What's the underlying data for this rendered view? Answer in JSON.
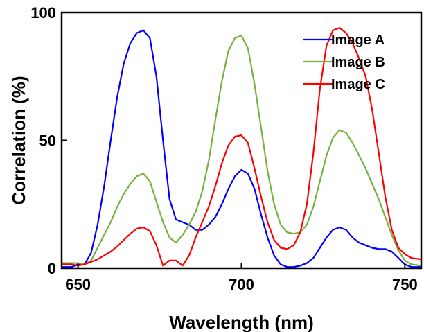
{
  "chart_data": {
    "type": "line",
    "xlabel": "Wavelength (nm)",
    "ylabel": "Correlation (%)",
    "xlim": [
      645,
      755
    ],
    "ylim": [
      0,
      100
    ],
    "xticks": [
      650,
      700,
      750
    ],
    "yticks": [
      0,
      50,
      100
    ],
    "grid": false,
    "legend_position": "top-right",
    "series": [
      {
        "name": "Image A",
        "color": "#0000ff",
        "x": [
          645,
          648,
          650,
          652,
          654,
          656,
          658,
          660,
          662,
          664,
          666,
          668,
          670,
          672,
          674,
          676,
          678,
          680,
          682,
          684,
          686,
          688,
          690,
          692,
          694,
          696,
          698,
          700,
          702,
          704,
          706,
          708,
          710,
          712,
          714,
          716,
          718,
          720,
          722,
          724,
          726,
          728,
          730,
          732,
          734,
          736,
          738,
          740,
          742,
          744,
          746,
          748,
          750,
          752,
          755
        ],
        "y": [
          0.5,
          0.5,
          1.5,
          1.5,
          6,
          17,
          32,
          50,
          67,
          80,
          88,
          92,
          93,
          90,
          75,
          50,
          27,
          19,
          18,
          17,
          15,
          15,
          17,
          20,
          25,
          31,
          36,
          38.5,
          37,
          31,
          21,
          12,
          5,
          1.5,
          0.5,
          0.5,
          1,
          2,
          4,
          8,
          12,
          15,
          16,
          15,
          12,
          10,
          9,
          8,
          7.5,
          7.5,
          6.5,
          4,
          1.5,
          0.5,
          0.5
        ]
      },
      {
        "name": "Image B",
        "color": "#76b041",
        "x": [
          645,
          648,
          650,
          652,
          654,
          656,
          658,
          660,
          662,
          664,
          666,
          668,
          670,
          672,
          674,
          676,
          678,
          680,
          682,
          684,
          686,
          688,
          690,
          692,
          694,
          696,
          698,
          700,
          702,
          704,
          706,
          708,
          710,
          712,
          714,
          716,
          718,
          720,
          722,
          724,
          726,
          728,
          730,
          732,
          734,
          736,
          738,
          740,
          742,
          744,
          746,
          748,
          750,
          752,
          755
        ],
        "y": [
          2,
          2,
          2,
          1.5,
          3,
          8,
          13,
          18,
          24,
          29,
          33,
          36,
          37,
          34,
          26,
          18,
          12,
          10,
          13,
          17,
          22,
          30,
          42,
          58,
          73,
          85,
          90,
          91,
          86,
          72,
          55,
          38,
          25,
          17,
          14,
          13.5,
          14,
          17,
          24,
          34,
          44,
          51,
          54,
          53,
          49,
          44,
          39,
          33,
          27,
          20,
          13,
          7,
          3,
          1.5,
          1
        ]
      },
      {
        "name": "Image C",
        "color": "#ff0000",
        "x": [
          645,
          648,
          650,
          652,
          654,
          656,
          658,
          660,
          662,
          664,
          666,
          668,
          670,
          672,
          674,
          676,
          678,
          680,
          682,
          684,
          686,
          688,
          690,
          692,
          694,
          696,
          698,
          700,
          702,
          704,
          706,
          708,
          710,
          712,
          714,
          716,
          718,
          720,
          722,
          724,
          726,
          728,
          730,
          732,
          734,
          736,
          738,
          740,
          742,
          744,
          746,
          748,
          750,
          752,
          755
        ],
        "y": [
          1.5,
          1.5,
          1,
          1.5,
          2.5,
          3.5,
          5,
          6.5,
          8.5,
          11,
          13.5,
          15.5,
          16,
          14.5,
          9,
          1,
          3,
          3,
          1,
          5,
          12,
          18,
          24,
          32,
          41,
          48,
          51.5,
          52,
          49,
          39,
          28,
          18,
          11,
          8,
          7.5,
          9,
          14,
          25,
          45,
          70,
          87,
          93,
          94,
          92,
          88,
          82,
          75,
          62,
          45,
          28,
          15,
          8,
          5.5,
          4,
          3.5
        ]
      }
    ]
  }
}
